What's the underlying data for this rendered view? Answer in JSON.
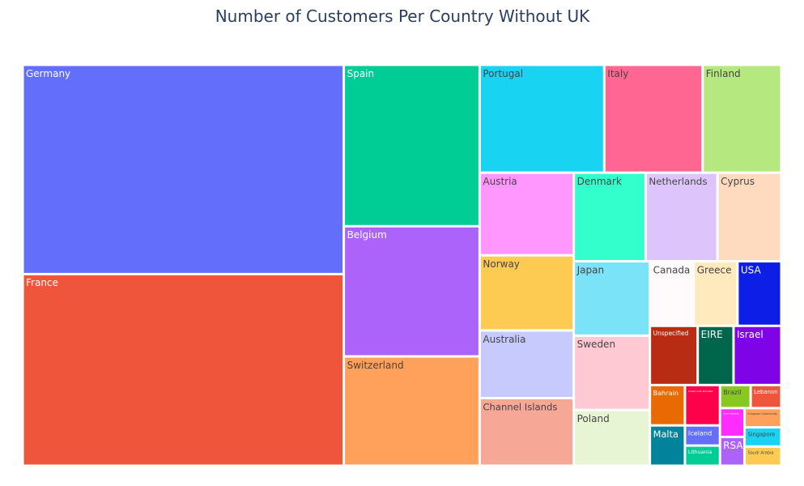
{
  "chart_data": {
    "type": "treemap",
    "title": "Number of Customers Per Country Without UK",
    "categories": [
      "Germany",
      "France",
      "Spain",
      "Belgium",
      "Switzerland",
      "Portugal",
      "Italy",
      "Finland",
      "Austria",
      "Norway",
      "Australia",
      "Channel Islands",
      "Denmark",
      "Netherlands",
      "Cyprus",
      "Japan",
      "Sweden",
      "Poland",
      "Canada",
      "Greece",
      "USA",
      "Unspecified",
      "EIRE",
      "Israel",
      "Bahrain",
      "Malta",
      "United Arab Emirates",
      "Iceland",
      "Lithuania",
      "Brazil",
      "Lebanon",
      "Czech Republic",
      "RSA",
      "European Community",
      "Singapore",
      "Saudi Arabia"
    ],
    "values": [
      95,
      87,
      31,
      25,
      21,
      19,
      15,
      12,
      11,
      10,
      9,
      9,
      9,
      9,
      8,
      8,
      8,
      6,
      4,
      4,
      4,
      4,
      3,
      4,
      2,
      2,
      2,
      1,
      1,
      1,
      1,
      1,
      1,
      1,
      1,
      1
    ],
    "colors": [
      "#636efa",
      "#ef553b",
      "#00cc96",
      "#ab63fa",
      "#ffa15a",
      "#19d3f3",
      "#ff6692",
      "#b6e880",
      "#ff97ff",
      "#fecb52",
      "#c6cafd",
      "#f6a796",
      "#33ffcc",
      "#ddc5fc",
      "#fedbbf",
      "#7ae3f8",
      "#ffc9d3",
      "#e8f5d5",
      "#fffbfd",
      "#feeabd",
      "#0d1ee6",
      "#b82c13",
      "#00664b",
      "#7e03e6",
      "#e86a00",
      "#00839b",
      "#ff004a",
      "#636efa",
      "#00cc96",
      "#88c821",
      "#ef553b",
      "#ff2cff",
      "#ab63fa",
      "#ffa15a",
      "#19d3f3",
      "#fecb52"
    ]
  }
}
